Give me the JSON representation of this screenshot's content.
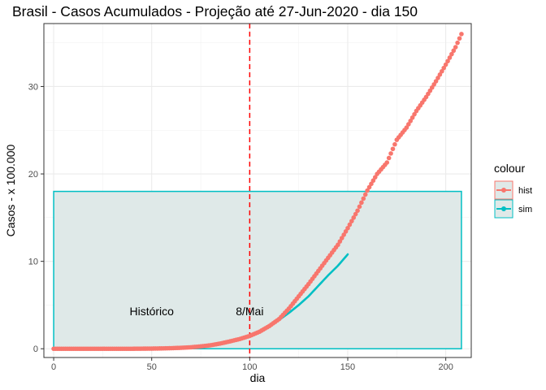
{
  "chart_data": {
    "type": "scatter",
    "title": "Brasil - Casos Acumulados - Projeção até 27-Jun-2020 - dia 150",
    "xlabel": "dia",
    "ylabel": "Casos - x 100.000",
    "xlim": [
      -5,
      213
    ],
    "ylim": [
      -1,
      37.2
    ],
    "xticks": [
      0,
      50,
      100,
      150,
      200
    ],
    "yticks": [
      0,
      10,
      20,
      30
    ],
    "grid": true,
    "legend": {
      "title": "colour",
      "position": "right",
      "entries": [
        {
          "name": "hist",
          "color": "#F8766D"
        },
        {
          "name": "sim",
          "color": "#00BFC4"
        }
      ]
    },
    "series": [
      {
        "name": "hist",
        "color": "#F8766D",
        "kind": "points",
        "x": [
          0,
          10,
          20,
          30,
          40,
          50,
          55,
          60,
          65,
          70,
          75,
          80,
          85,
          90,
          95,
          100,
          105,
          110,
          115,
          120,
          125,
          130,
          135,
          140,
          145,
          150,
          155,
          160,
          165,
          170,
          175,
          180,
          185,
          190,
          195,
          200,
          205,
          208
        ],
        "y": [
          0,
          0,
          0,
          0,
          0,
          0.02,
          0.04,
          0.07,
          0.11,
          0.17,
          0.27,
          0.4,
          0.6,
          0.85,
          1.12,
          1.47,
          1.95,
          2.6,
          3.4,
          4.6,
          6.0,
          7.4,
          8.9,
          10.4,
          11.9,
          13.8,
          15.8,
          18.1,
          20.0,
          21.3,
          23.9,
          25.3,
          27.2,
          28.8,
          30.6,
          32.5,
          34.5,
          36.0
        ]
      },
      {
        "name": "sim",
        "color": "#00BFC4",
        "kind": "line",
        "x": [
          100,
          105,
          110,
          115,
          120,
          125,
          130,
          135,
          140,
          145,
          150
        ],
        "y": [
          1.5,
          2.0,
          2.6,
          3.3,
          4.1,
          5.0,
          6.0,
          7.2,
          8.4,
          9.5,
          10.8
        ]
      }
    ],
    "rect": {
      "xmin": 0,
      "xmax": 208,
      "ymin": 0,
      "ymax": 18,
      "border": "#00BFC4",
      "fill": "#DFE9E8"
    },
    "vline": {
      "x": 100,
      "color": "#FF0000"
    },
    "annotations": [
      {
        "text": "Histórico",
        "x": 50,
        "y": 4.3
      },
      {
        "text": "8/Mai",
        "x": 100,
        "y": 4.3
      }
    ]
  }
}
